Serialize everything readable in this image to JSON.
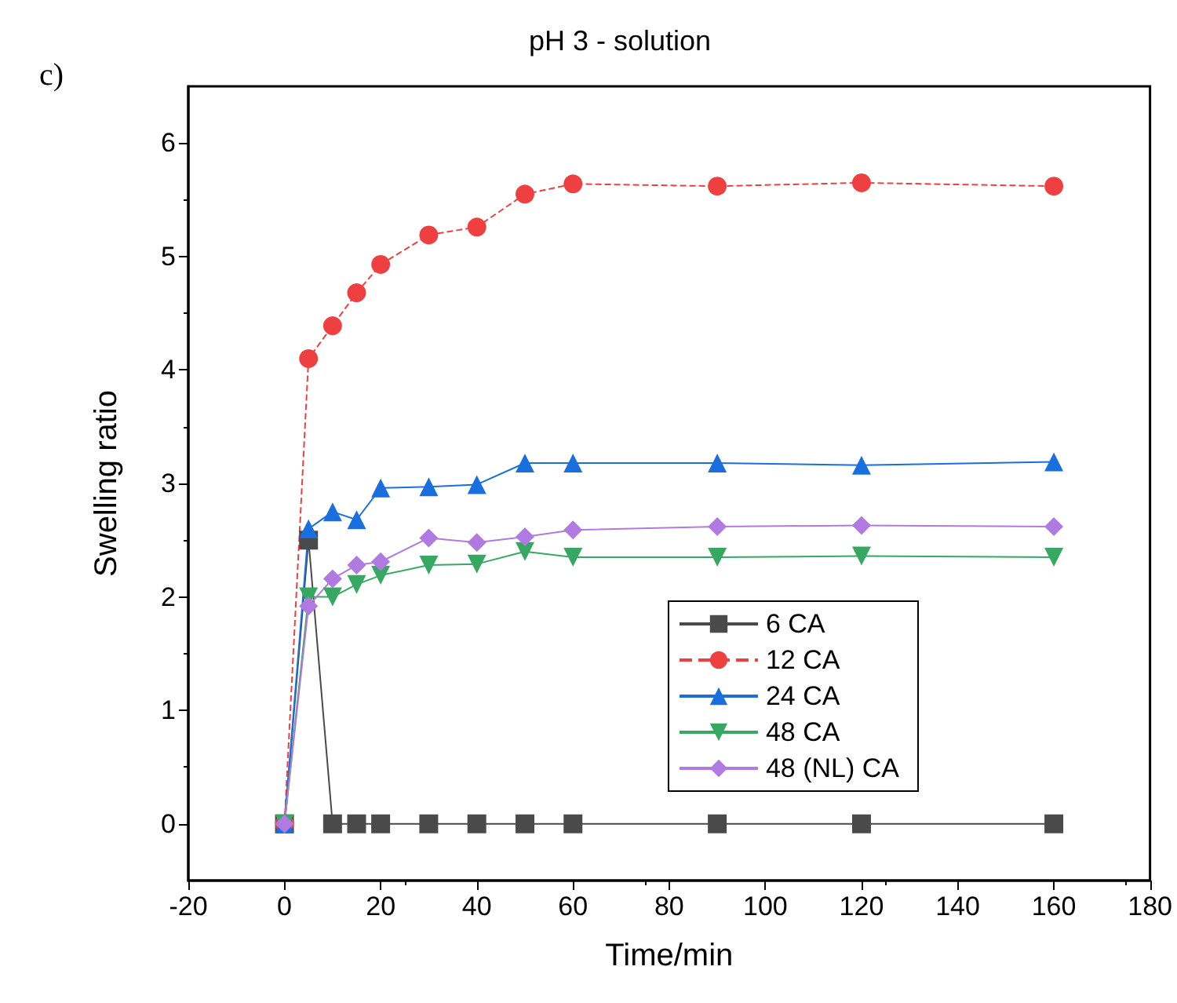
{
  "chart_data": {
    "type": "line",
    "title": "pH 3 - solution",
    "xlabel": "Time/min",
    "ylabel": "Swelling ratio",
    "annotations": [
      "c)"
    ],
    "x": [
      0,
      5,
      10,
      15,
      20,
      30,
      40,
      50,
      60,
      90,
      120,
      160
    ],
    "series": [
      {
        "name": "6 CA",
        "color": "#4a4a4a",
        "marker": "square",
        "line_style": "solid",
        "values": [
          0,
          2.5,
          0,
          0,
          0,
          0,
          0,
          0,
          0,
          0,
          0,
          0
        ]
      },
      {
        "name": "12 CA",
        "color": "#ee4040",
        "marker": "circle",
        "line_style": "dashed",
        "values": [
          0,
          4.1,
          4.39,
          4.68,
          4.93,
          5.19,
          5.26,
          5.55,
          5.64,
          5.62,
          5.65,
          5.62
        ]
      },
      {
        "name": "24 CA",
        "color": "#1a6fdf",
        "marker": "triangle",
        "line_style": "solid",
        "values": [
          0,
          2.6,
          2.75,
          2.68,
          2.96,
          2.97,
          2.99,
          3.18,
          3.18,
          3.18,
          3.16,
          3.19
        ]
      },
      {
        "name": "48 CA",
        "color": "#37a862",
        "marker": "triangle-down",
        "line_style": "solid",
        "values": [
          0,
          2.0,
          2.0,
          2.11,
          2.19,
          2.28,
          2.29,
          2.4,
          2.35,
          2.35,
          2.36,
          2.35
        ]
      },
      {
        "name": "48 (NL) CA",
        "color": "#b07ae0",
        "marker": "diamond",
        "line_style": "solid",
        "values": [
          0,
          1.92,
          2.16,
          2.28,
          2.31,
          2.52,
          2.48,
          2.53,
          2.59,
          2.62,
          2.63,
          2.62
        ]
      }
    ],
    "xlim": [
      -20,
      180
    ],
    "xticks": [
      -20,
      0,
      20,
      40,
      60,
      80,
      100,
      120,
      140,
      160,
      180
    ],
    "ylim": [
      -0.5,
      6.5
    ],
    "yticks": [
      0,
      1,
      2,
      3,
      4,
      5,
      6
    ],
    "grid": false,
    "legend": "bottom right"
  }
}
